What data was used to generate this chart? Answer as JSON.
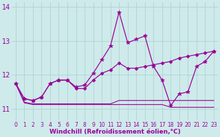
{
  "bg_color": "#ceeaea",
  "grid_color": "#aacece",
  "line_color": "#990099",
  "xlabel": "Windchill (Refroidissement éolien,°C)",
  "ylim": [
    10.65,
    14.15
  ],
  "xlim": [
    -0.5,
    23.5
  ],
  "yticks": [
    11,
    12,
    13,
    14
  ],
  "xticks": [
    0,
    1,
    2,
    3,
    4,
    5,
    6,
    7,
    8,
    9,
    10,
    11,
    12,
    13,
    14,
    15,
    16,
    17,
    18,
    19,
    20,
    21,
    22,
    23
  ],
  "series": [
    {
      "x": [
        0,
        1,
        2,
        3,
        4,
        5,
        6,
        7,
        8,
        9,
        10,
        11,
        12,
        13,
        14,
        15,
        16,
        17,
        18,
        19,
        20,
        21,
        22,
        23
      ],
      "y": [
        11.75,
        11.3,
        11.25,
        11.35,
        11.75,
        11.85,
        11.85,
        11.65,
        11.7,
        12.05,
        12.45,
        12.85,
        13.85,
        12.95,
        13.05,
        13.15,
        12.25,
        11.85,
        11.1,
        11.45,
        11.5,
        12.25,
        12.4,
        12.7
      ],
      "marker": "*",
      "markersize": 4,
      "lw": 0.9
    },
    {
      "x": [
        0,
        1,
        2,
        3,
        4,
        5,
        6,
        7,
        8,
        9,
        10,
        11,
        12,
        13,
        14,
        15,
        16,
        17,
        18,
        19,
        20,
        21,
        22,
        23
      ],
      "y": [
        11.75,
        11.3,
        11.25,
        11.35,
        11.75,
        11.85,
        11.85,
        11.6,
        11.6,
        11.85,
        12.05,
        12.15,
        12.35,
        12.2,
        12.2,
        12.25,
        12.3,
        12.35,
        12.4,
        12.5,
        12.55,
        12.6,
        12.65,
        12.7
      ],
      "marker": "D",
      "markersize": 2.5,
      "lw": 0.9
    },
    {
      "x": [
        0,
        1,
        2,
        3,
        4,
        5,
        6,
        7,
        8,
        9,
        10,
        11,
        12,
        13,
        14,
        15,
        16,
        17,
        18,
        19,
        20,
        21,
        22,
        23
      ],
      "y": [
        11.75,
        11.2,
        11.15,
        11.15,
        11.15,
        11.15,
        11.15,
        11.15,
        11.15,
        11.15,
        11.15,
        11.15,
        11.25,
        11.25,
        11.25,
        11.25,
        11.25,
        11.25,
        11.25,
        11.25,
        11.25,
        11.25,
        11.25,
        11.25
      ],
      "marker": null,
      "markersize": 0,
      "lw": 0.8
    },
    {
      "x": [
        0,
        1,
        2,
        3,
        4,
        5,
        6,
        7,
        8,
        9,
        10,
        11,
        12,
        13,
        14,
        15,
        16,
        17,
        18,
        19,
        20,
        21,
        22,
        23
      ],
      "y": [
        11.75,
        11.18,
        11.13,
        11.13,
        11.13,
        11.13,
        11.13,
        11.13,
        11.13,
        11.13,
        11.13,
        11.13,
        11.13,
        11.13,
        11.13,
        11.13,
        11.13,
        11.13,
        11.05,
        11.05,
        11.05,
        11.05,
        11.05,
        11.05
      ],
      "marker": null,
      "markersize": 0,
      "lw": 0.8
    }
  ],
  "tick_fontsize": 5.5,
  "xlabel_fontsize": 6.5,
  "ytick_fontsize": 7
}
